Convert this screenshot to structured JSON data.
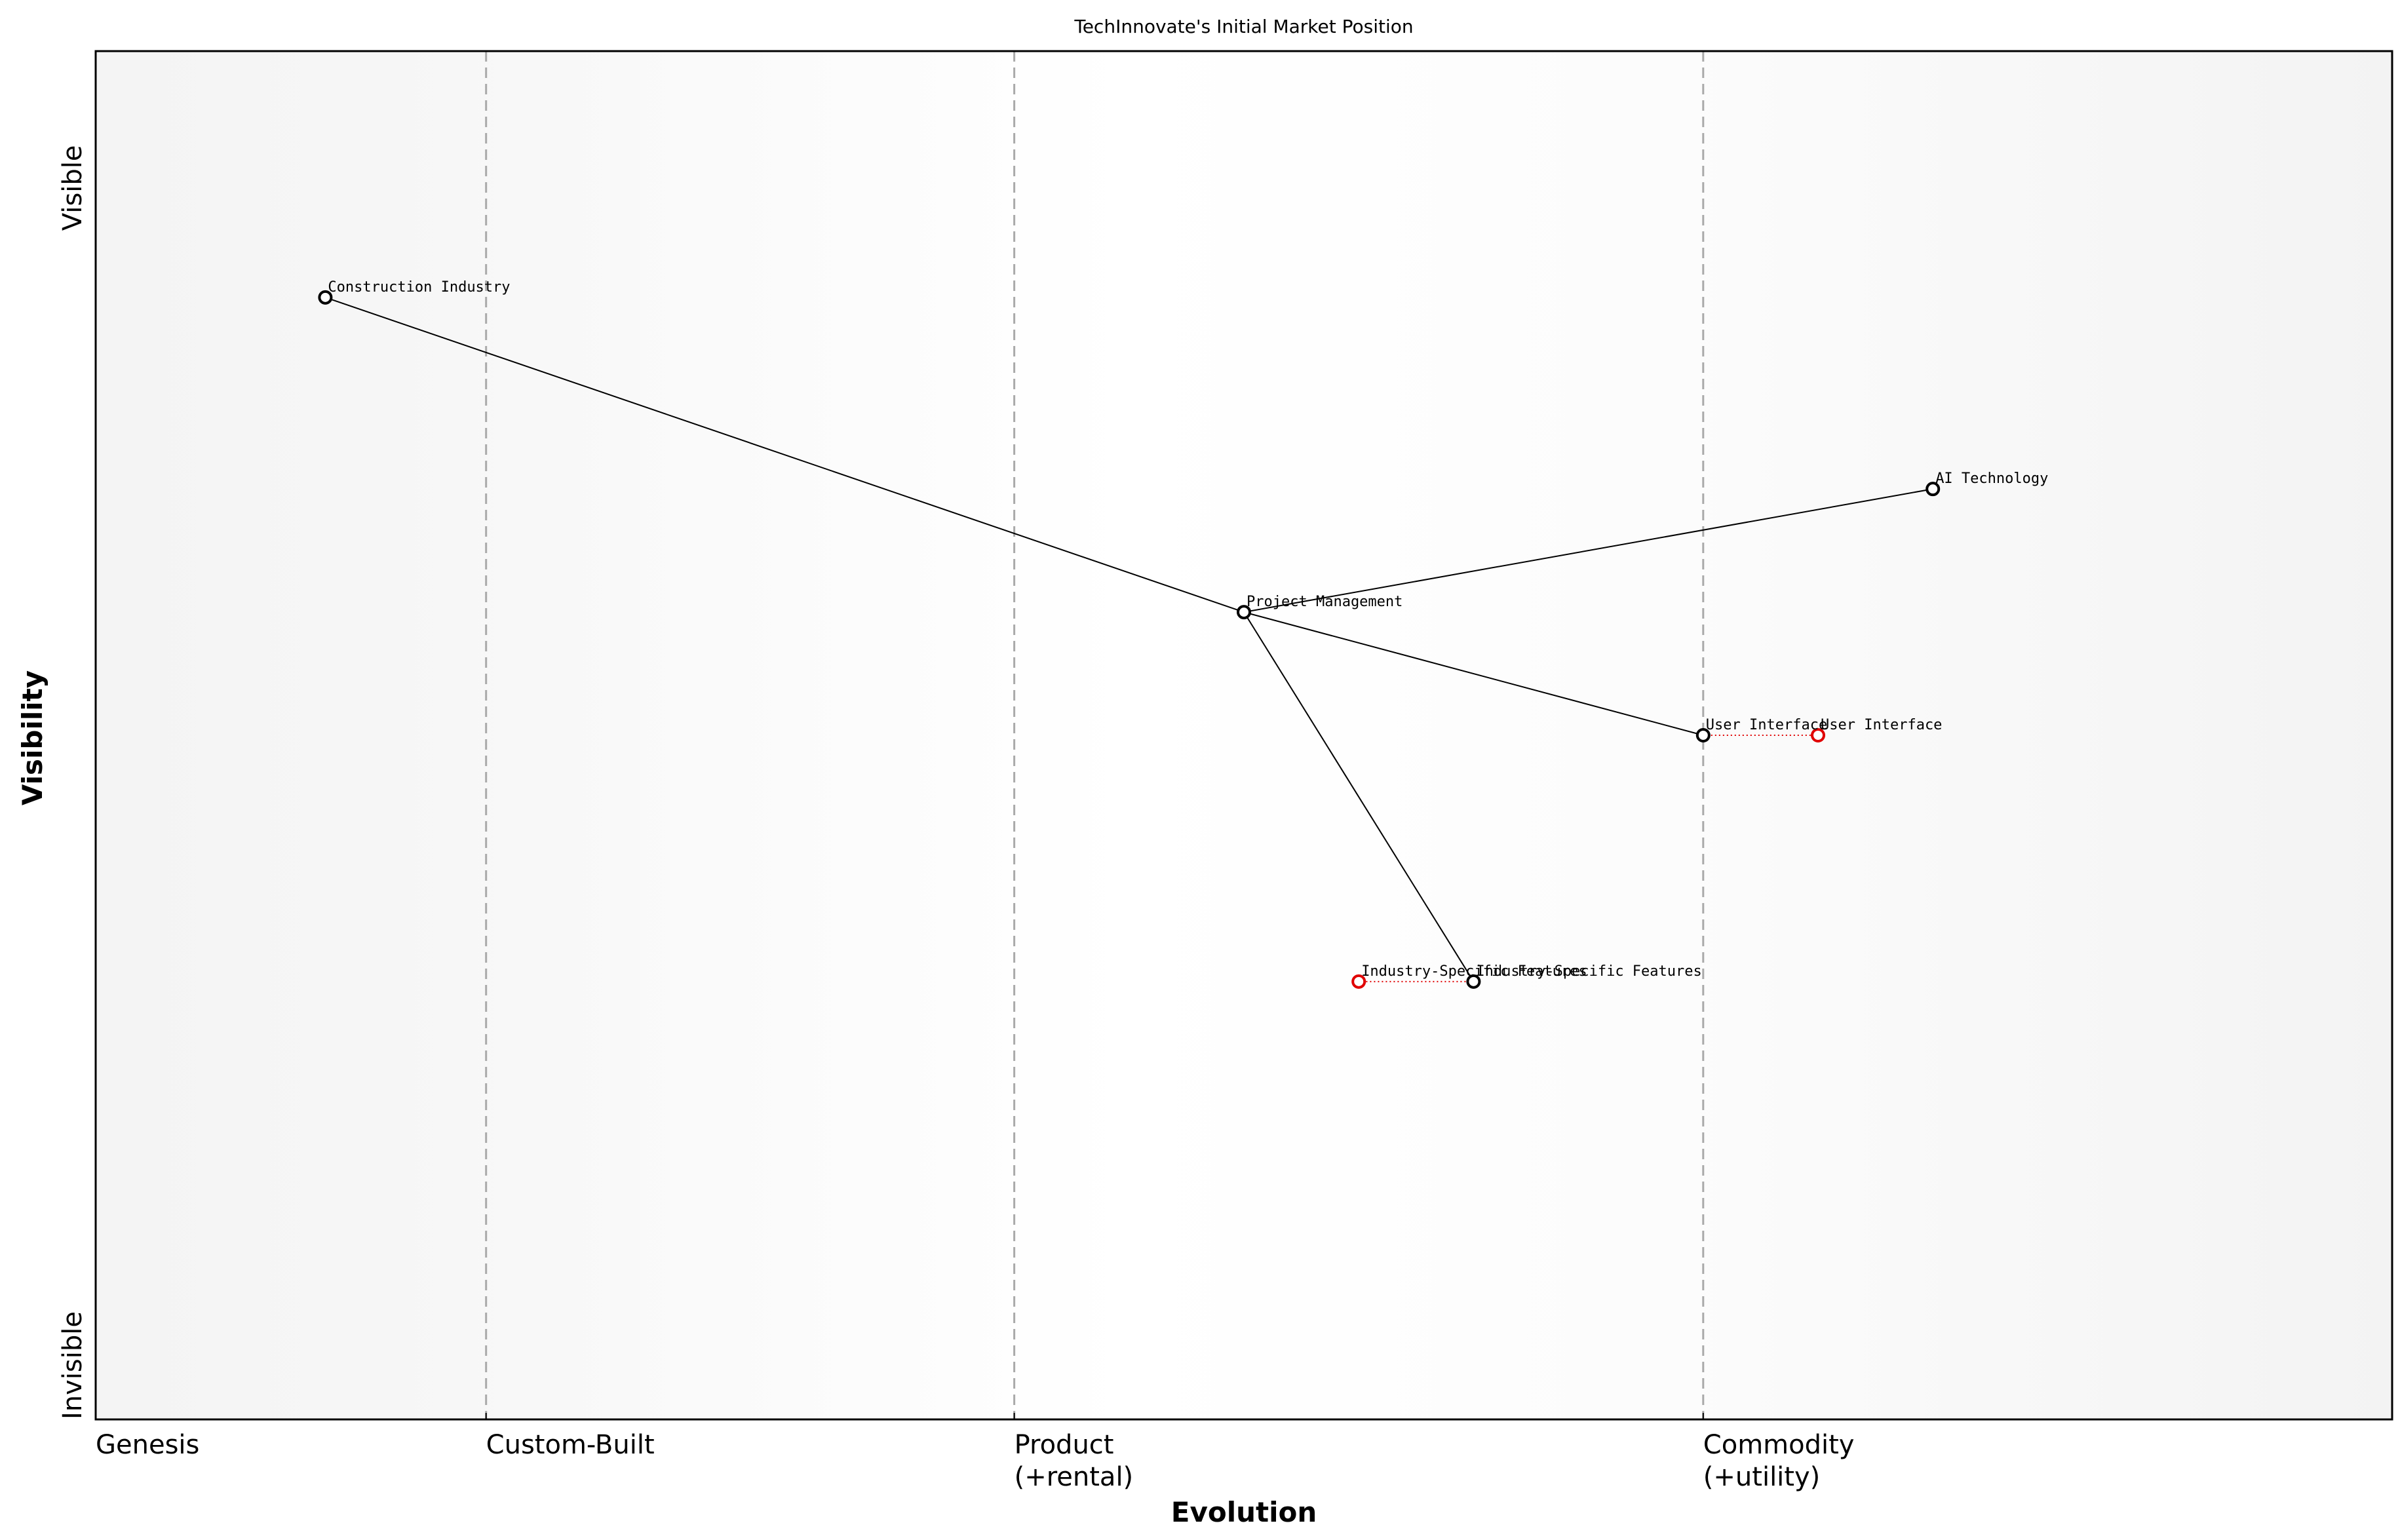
{
  "chart_data": {
    "type": "scatter",
    "title": "TechInnovate's Initial Market Position",
    "xlabel": "Evolution",
    "ylabel": "Visibility",
    "xlim": [
      0,
      1
    ],
    "ylim": [
      0,
      1
    ],
    "grid": false,
    "x_stage_boundaries": [
      0.17,
      0.4,
      0.7
    ],
    "x_ticks": [
      {
        "x": 0.0,
        "label": "Genesis"
      },
      {
        "x": 0.17,
        "label": "Custom-Built"
      },
      {
        "x": 0.4,
        "label": "Product\n(+rental)"
      },
      {
        "x": 0.7,
        "label": "Commodity\n(+utility)"
      }
    ],
    "y_ticks": [
      {
        "y": 0.0,
        "label": "Invisible"
      },
      {
        "y": 0.9,
        "label": "Visible"
      }
    ],
    "components": [
      {
        "name": "Construction Industry",
        "x": 0.1,
        "y": 0.82
      },
      {
        "name": "Project Management",
        "x": 0.5,
        "y": 0.59
      },
      {
        "name": "AI Technology",
        "x": 0.8,
        "y": 0.68
      },
      {
        "name": "User Interface",
        "x": 0.7,
        "y": 0.5
      },
      {
        "name": "Industry-Specific Features",
        "x": 0.6,
        "y": 0.32
      }
    ],
    "links": [
      [
        "Construction Industry",
        "Project Management"
      ],
      [
        "Project Management",
        "AI Technology"
      ],
      [
        "Project Management",
        "User Interface"
      ],
      [
        "Project Management",
        "Industry-Specific Features"
      ]
    ],
    "evolved_components": [
      {
        "name": "User Interface",
        "x": 0.75,
        "y": 0.5,
        "from_x": 0.7
      },
      {
        "name": "Industry-Specific Features",
        "x": 0.55,
        "y": 0.32,
        "from_x": 0.6
      }
    ],
    "colors": {
      "component": "#000000",
      "evolved": "#e00000",
      "stage_line": "#aaaaaa",
      "background": "#f5f5f5"
    }
  }
}
